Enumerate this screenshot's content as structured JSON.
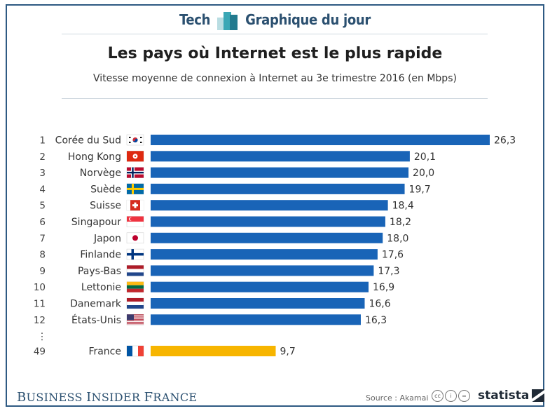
{
  "header": {
    "left": "Tech",
    "right": "Graphique du jour",
    "logo_colors": [
      "#b9dde2",
      "#3aa7b5",
      "#227a8e"
    ]
  },
  "title": "Les pays où Internet est le plus rapide",
  "subtitle": "Vitesse moyenne de connexion à Internet au 3e trimestre 2016 (en Mbps)",
  "colors": {
    "bar": "#1964b7",
    "highlight": "#f7b500",
    "frame": "#2e5a83"
  },
  "ellipsis": "⋮",
  "chart_data": {
    "type": "bar",
    "orientation": "horizontal",
    "title": "Les pays où Internet est le plus rapide",
    "subtitle": "Vitesse moyenne de connexion à Internet au 3e trimestre 2016 (en Mbps)",
    "xlim": [
      0,
      26.3
    ],
    "grid": false,
    "rows": [
      {
        "rank": "1",
        "country": "Corée du Sud",
        "value": 26.3,
        "label": "26,3",
        "flag": "south-korea"
      },
      {
        "rank": "2",
        "country": "Hong Kong",
        "value": 20.1,
        "label": "20,1",
        "flag": "hong-kong"
      },
      {
        "rank": "3",
        "country": "Norvège",
        "value": 20.0,
        "label": "20,0",
        "flag": "norway"
      },
      {
        "rank": "4",
        "country": "Suède",
        "value": 19.7,
        "label": "19,7",
        "flag": "sweden"
      },
      {
        "rank": "5",
        "country": "Suisse",
        "value": 18.4,
        "label": "18,4",
        "flag": "switzerland"
      },
      {
        "rank": "6",
        "country": "Singapour",
        "value": 18.2,
        "label": "18,2",
        "flag": "singapore"
      },
      {
        "rank": "7",
        "country": "Japon",
        "value": 18.0,
        "label": "18,0",
        "flag": "japan"
      },
      {
        "rank": "8",
        "country": "Finlande",
        "value": 17.6,
        "label": "17,6",
        "flag": "finland"
      },
      {
        "rank": "9",
        "country": "Pays-Bas",
        "value": 17.3,
        "label": "17,3",
        "flag": "netherlands"
      },
      {
        "rank": "10",
        "country": "Lettonie",
        "value": 16.9,
        "label": "16,9",
        "flag": "lithuania-tricolor"
      },
      {
        "rank": "11",
        "country": "Danemark",
        "value": 16.6,
        "label": "16,6",
        "flag": "netherlands"
      },
      {
        "rank": "12",
        "country": "États-Unis",
        "value": 16.3,
        "label": "16,3",
        "flag": "united-states"
      },
      {
        "rank": "49",
        "country": "France",
        "value": 9.7,
        "label": "9,7",
        "flag": "france",
        "highlight": true
      }
    ]
  },
  "footer": {
    "brand_b": "B",
    "brand_rest1": "USINESS ",
    "brand_i": "I",
    "brand_rest2": "NSIDER ",
    "brand_f": "F",
    "brand_rest3": "RANCE",
    "source": "Source : Akamai",
    "statista": "statista"
  }
}
